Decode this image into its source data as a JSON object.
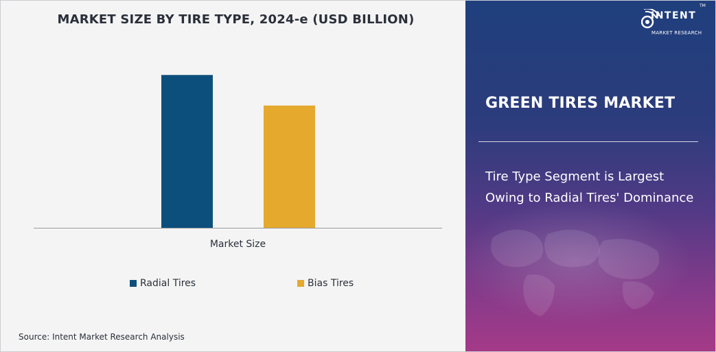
{
  "chart_data": {
    "type": "bar",
    "title": "MARKET SIZE BY TIRE TYPE, 2024-e (USD BILLION)",
    "categories": [
      "Market Size"
    ],
    "series": [
      {
        "name": "Radial Tires",
        "values": [
          10.0
        ],
        "color": "#0d4f7c"
      },
      {
        "name": "Bias Tires",
        "values": [
          8.0
        ],
        "color": "#e5a92e"
      }
    ],
    "xlabel": "",
    "ylabel": "",
    "ylim": [
      0,
      11
    ],
    "grid": false,
    "legend": "bottom"
  },
  "source": "Source: Intent Market Research Analysis",
  "panel": {
    "brand": "INTENT",
    "brand_sub": "MARKET RESEARCH",
    "trademark": "TM",
    "title": "GREEN TIRES MARKET",
    "insight": "Tire Type Segment is Largest Owing to Radial Tires' Dominance"
  }
}
